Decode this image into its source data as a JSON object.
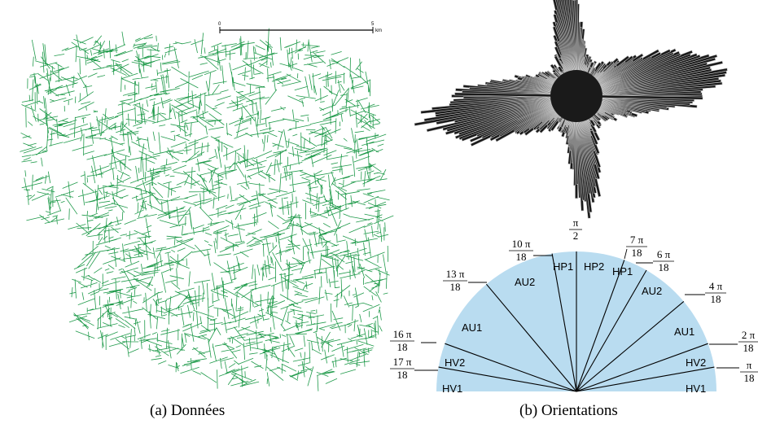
{
  "map_panel": {
    "caption": "(a) Données",
    "line_color": "#1f9a4a",
    "scale_bar": {
      "start_label": "0",
      "end_label": "5",
      "unit": "km"
    }
  },
  "rose_panel": {
    "bar_fill": "#1a1a1a",
    "bar_stroke": "#cfcfcf"
  },
  "orientation_panel": {
    "caption": "(b) Orientations",
    "fill_color": "#b9dcf0",
    "sector_labels": [
      "HV1",
      "HV2",
      "AU1",
      "AU2",
      "HP1",
      "HP2",
      "HP1",
      "AU2",
      "AU1",
      "HV2",
      "HV1"
    ],
    "boundary_labels": [
      {
        "num": "π",
        "den": "18"
      },
      {
        "num": "2 π",
        "den": "18"
      },
      {
        "num": "4 π",
        "den": "18"
      },
      {
        "num": "6 π",
        "den": "18"
      },
      {
        "num": "7 π",
        "den": "18"
      },
      {
        "num": "π",
        "den": "2"
      },
      {
        "num": "10 π",
        "den": "18"
      },
      {
        "num": "13 π",
        "den": "18"
      },
      {
        "num": "16 π",
        "den": "18"
      },
      {
        "num": "17 π",
        "den": "18"
      }
    ]
  }
}
